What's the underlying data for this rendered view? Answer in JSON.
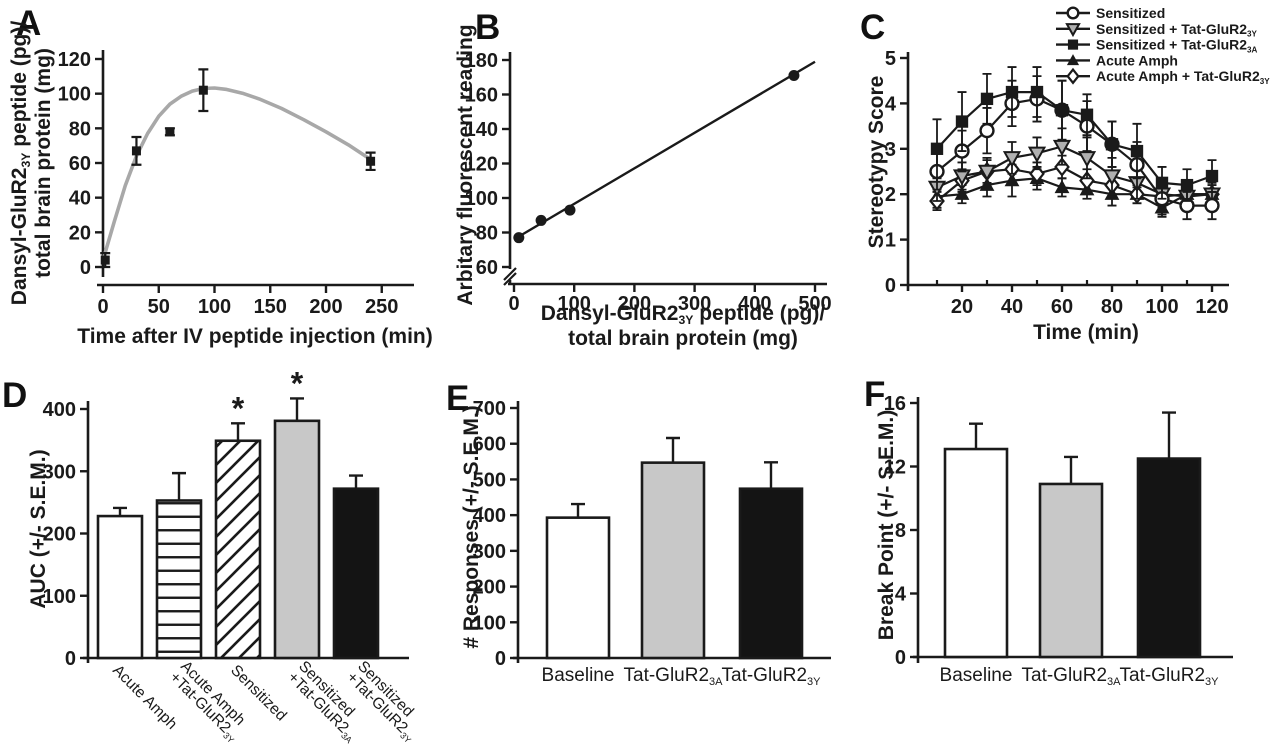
{
  "figure": {
    "background": "#ffffff",
    "ink": "#1a1a1a",
    "colors": {
      "curve_gray": "#a8a8a8",
      "bar_gray": "#c8c8c8",
      "marker_gray": "#b0b0b0"
    }
  },
  "chart_data": [
    {
      "panel": "A",
      "type": "scatter",
      "xlabel": "Time after IV peptide injection (min)",
      "ylabel_lines": [
        "Dansyl-GluR2~3Y~ peptide (pg)/",
        "total brain protein (mg)"
      ],
      "xlim": [
        0,
        260
      ],
      "ylim": [
        0,
        120
      ],
      "xticks": [
        0,
        50,
        100,
        150,
        200,
        250
      ],
      "yticks": [
        0,
        20,
        40,
        60,
        80,
        100,
        120
      ],
      "points": {
        "x": [
          2,
          30,
          60,
          90,
          240
        ],
        "y": [
          4,
          67,
          78,
          102,
          61
        ],
        "err": [
          4,
          8,
          2,
          12,
          5
        ]
      },
      "fit_curve": {
        "color": "#a8a8a8",
        "points": [
          [
            0,
            4
          ],
          [
            10,
            26
          ],
          [
            20,
            47
          ],
          [
            30,
            64
          ],
          [
            40,
            77
          ],
          [
            50,
            87
          ],
          [
            60,
            94
          ],
          [
            70,
            98.5
          ],
          [
            80,
            101.5
          ],
          [
            90,
            103
          ],
          [
            100,
            103.3
          ],
          [
            110,
            102.5
          ],
          [
            125,
            100.3
          ],
          [
            140,
            97
          ],
          [
            160,
            91.5
          ],
          [
            180,
            85
          ],
          [
            200,
            78
          ],
          [
            220,
            70.5
          ],
          [
            240,
            62
          ]
        ]
      }
    },
    {
      "panel": "B",
      "type": "scatter",
      "xlabel_lines": [
        "Dansyl-GluR2~3Y~ peptide (pg)/",
        "total brain protein (mg)"
      ],
      "ylabel": "Arbitary fluorescent reading",
      "xlim": [
        0,
        520
      ],
      "ylim": [
        60,
        180
      ],
      "y_axis_break": true,
      "xticks": [
        0,
        100,
        200,
        300,
        400,
        500
      ],
      "yticks": [
        60,
        80,
        100,
        120,
        140,
        160,
        180
      ],
      "points": {
        "x": [
          8,
          45,
          93,
          465
        ],
        "y": [
          77,
          87,
          93,
          171
        ]
      },
      "fit_line": {
        "x": [
          0,
          500
        ],
        "y": [
          76,
          179
        ]
      }
    },
    {
      "panel": "C",
      "type": "line",
      "xlabel": "Time (min)",
      "ylabel": "Stereotypy Score",
      "xlim": [
        5,
        128
      ],
      "ylim": [
        0,
        5
      ],
      "xticks": [
        20,
        40,
        60,
        80,
        100,
        120
      ],
      "minor_xticks": [
        10,
        30,
        50,
        70,
        90,
        110
      ],
      "yticks": [
        0,
        1,
        2,
        3,
        4,
        5
      ],
      "x": [
        10,
        20,
        30,
        40,
        50,
        60,
        70,
        80,
        90,
        100,
        110,
        120
      ],
      "legend_position": "top-right",
      "series": [
        {
          "name": "Sensitized",
          "marker": "circle-open",
          "values": [
            2.5,
            2.95,
            3.4,
            4.0,
            4.1,
            3.85,
            3.5,
            3.1,
            2.65,
            1.9,
            1.75,
            1.75
          ],
          "errors": [
            0.4,
            0.45,
            0.5,
            0.5,
            0.5,
            0.65,
            0.55,
            0.5,
            0.5,
            0.35,
            0.3,
            0.3
          ]
        },
        {
          "name": "Sensitized + Tat-GluR2~3Y~",
          "marker": "triangle-down-gray",
          "values": [
            2.15,
            2.4,
            2.5,
            2.8,
            2.9,
            3.05,
            2.8,
            2.4,
            2.25,
            2.0,
            1.95,
            2.0
          ],
          "errors": [
            0.3,
            0.3,
            0.3,
            0.35,
            0.35,
            0.4,
            0.45,
            0.4,
            0.35,
            0.3,
            0.25,
            0.25
          ]
        },
        {
          "name": "Sensitized + Tat-GluR2~3A~",
          "marker": "square-filled",
          "values": [
            3.0,
            3.6,
            4.1,
            4.25,
            4.25,
            3.85,
            3.75,
            3.1,
            2.95,
            2.25,
            2.2,
            2.4
          ],
          "errors": [
            0.65,
            0.65,
            0.55,
            0.55,
            0.55,
            0.65,
            0.45,
            0.5,
            0.6,
            0.35,
            0.35,
            0.35
          ]
        },
        {
          "name": "Acute Amph",
          "marker": "triangle-up-filled",
          "values": [
            1.95,
            2.0,
            2.2,
            2.3,
            2.35,
            2.15,
            2.1,
            2.0,
            2.0,
            1.7,
            2.0,
            2.0
          ],
          "errors": [
            0.25,
            0.2,
            0.25,
            0.35,
            0.25,
            0.2,
            0.2,
            0.25,
            0.2,
            0.2,
            0.2,
            0.2
          ]
        },
        {
          "name": "Acute Amph + Tat-GluR2~3Y~",
          "marker": "diamond-open",
          "values": [
            1.85,
            2.3,
            2.5,
            2.55,
            2.45,
            2.6,
            2.3,
            2.2,
            2.0,
            1.95,
            2.0,
            2.0
          ],
          "errors": [
            0.2,
            0.25,
            0.25,
            0.3,
            0.25,
            0.25,
            0.25,
            0.25,
            0.2,
            0.2,
            0.2,
            0.2
          ]
        }
      ]
    },
    {
      "panel": "D",
      "type": "bar",
      "ylabel": "AUC (+/- S.E.M.)",
      "ylim": [
        0,
        400
      ],
      "yticks": [
        0,
        100,
        200,
        300,
        400
      ],
      "categories": [
        "Acute Amph",
        "Acute Amph|+Tat-GluR2~3Y~",
        "Sensitized",
        "Sensitized|+Tat-GluR2~3A~",
        "Sensitized|+Tat-GluR2~3Y~"
      ],
      "values": [
        228,
        253,
        349,
        381,
        272
      ],
      "errors": [
        13,
        44,
        28,
        36,
        21
      ],
      "sig": [
        "",
        "",
        "*",
        "*",
        ""
      ],
      "bar_styles": [
        "white",
        "hatch-horizontal",
        "hatch-diagonal",
        "gray",
        "black"
      ],
      "rotated_labels": true
    },
    {
      "panel": "E",
      "type": "bar",
      "ylabel": "# Responses (+/- S.E.M.)",
      "ylim": [
        0,
        700
      ],
      "yticks": [
        0,
        100,
        200,
        300,
        400,
        500,
        600,
        700
      ],
      "categories": [
        "Baseline",
        "Tat-GluR2~3A~",
        "Tat-GluR2~3Y~"
      ],
      "values": [
        393,
        547,
        474
      ],
      "errors": [
        38,
        69,
        74
      ],
      "sig": [
        "",
        "",
        ""
      ],
      "bar_styles": [
        "white",
        "gray",
        "black"
      ],
      "rotated_labels": false
    },
    {
      "panel": "F",
      "type": "bar",
      "ylabel": "Break Point (+/- S.E.M.)",
      "ylim": [
        0,
        16
      ],
      "yticks": [
        0,
        4,
        8,
        12,
        16
      ],
      "categories": [
        "Baseline",
        "Tat-GluR2~3A~",
        "Tat-GluR2~3Y~"
      ],
      "values": [
        13.1,
        10.9,
        12.5
      ],
      "errors": [
        1.6,
        1.7,
        2.9
      ],
      "sig": [
        "",
        "",
        ""
      ],
      "bar_styles": [
        "white",
        "gray",
        "black"
      ],
      "rotated_labels": false
    }
  ]
}
